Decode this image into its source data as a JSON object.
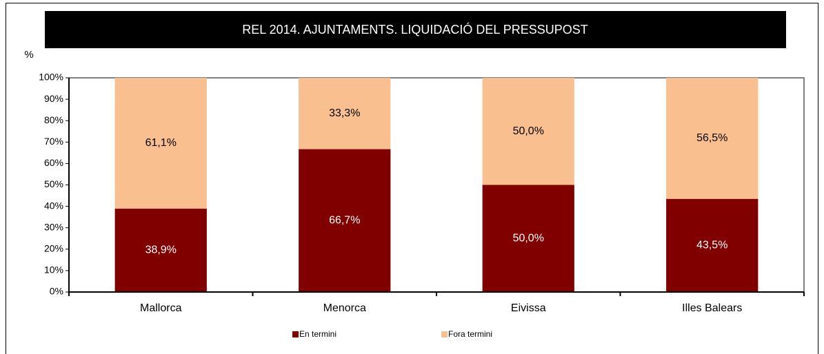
{
  "chart_data": {
    "type": "stacked_bar",
    "title": "REL 2014. AJUNTAMENTS.  LIQUIDACIÓ DEL PRESSUPOST",
    "y_label": "%",
    "categories": [
      "Mallorca",
      "Menorca",
      "Eivissa",
      "Illes Balears"
    ],
    "series": [
      {
        "name": "En termini",
        "color": "#800000",
        "values": [
          38.9,
          66.7,
          50.0,
          43.5
        ],
        "value_labels": [
          "38,9%",
          "66,7%",
          "50,0%",
          "43,5%"
        ]
      },
      {
        "name": "Fora termini",
        "color": "#f9bf8f",
        "values": [
          61.1,
          33.3,
          50.0,
          56.5
        ],
        "value_labels": [
          "61,1%",
          "33,3%",
          "50,0%",
          "56,5%"
        ]
      }
    ],
    "ylim": [
      0,
      100
    ],
    "yticks": [
      {
        "value": 0,
        "label": "0%"
      },
      {
        "value": 10,
        "label": "10%"
      },
      {
        "value": 20,
        "label": "20%"
      },
      {
        "value": 30,
        "label": "30%"
      },
      {
        "value": 40,
        "label": "40%"
      },
      {
        "value": 50,
        "label": "50%"
      },
      {
        "value": 60,
        "label": "60%"
      },
      {
        "value": 70,
        "label": "70%"
      },
      {
        "value": 80,
        "label": "80%"
      },
      {
        "value": 90,
        "label": "90%"
      },
      {
        "value": 100,
        "label": "100%"
      }
    ],
    "legend": "bottom"
  }
}
